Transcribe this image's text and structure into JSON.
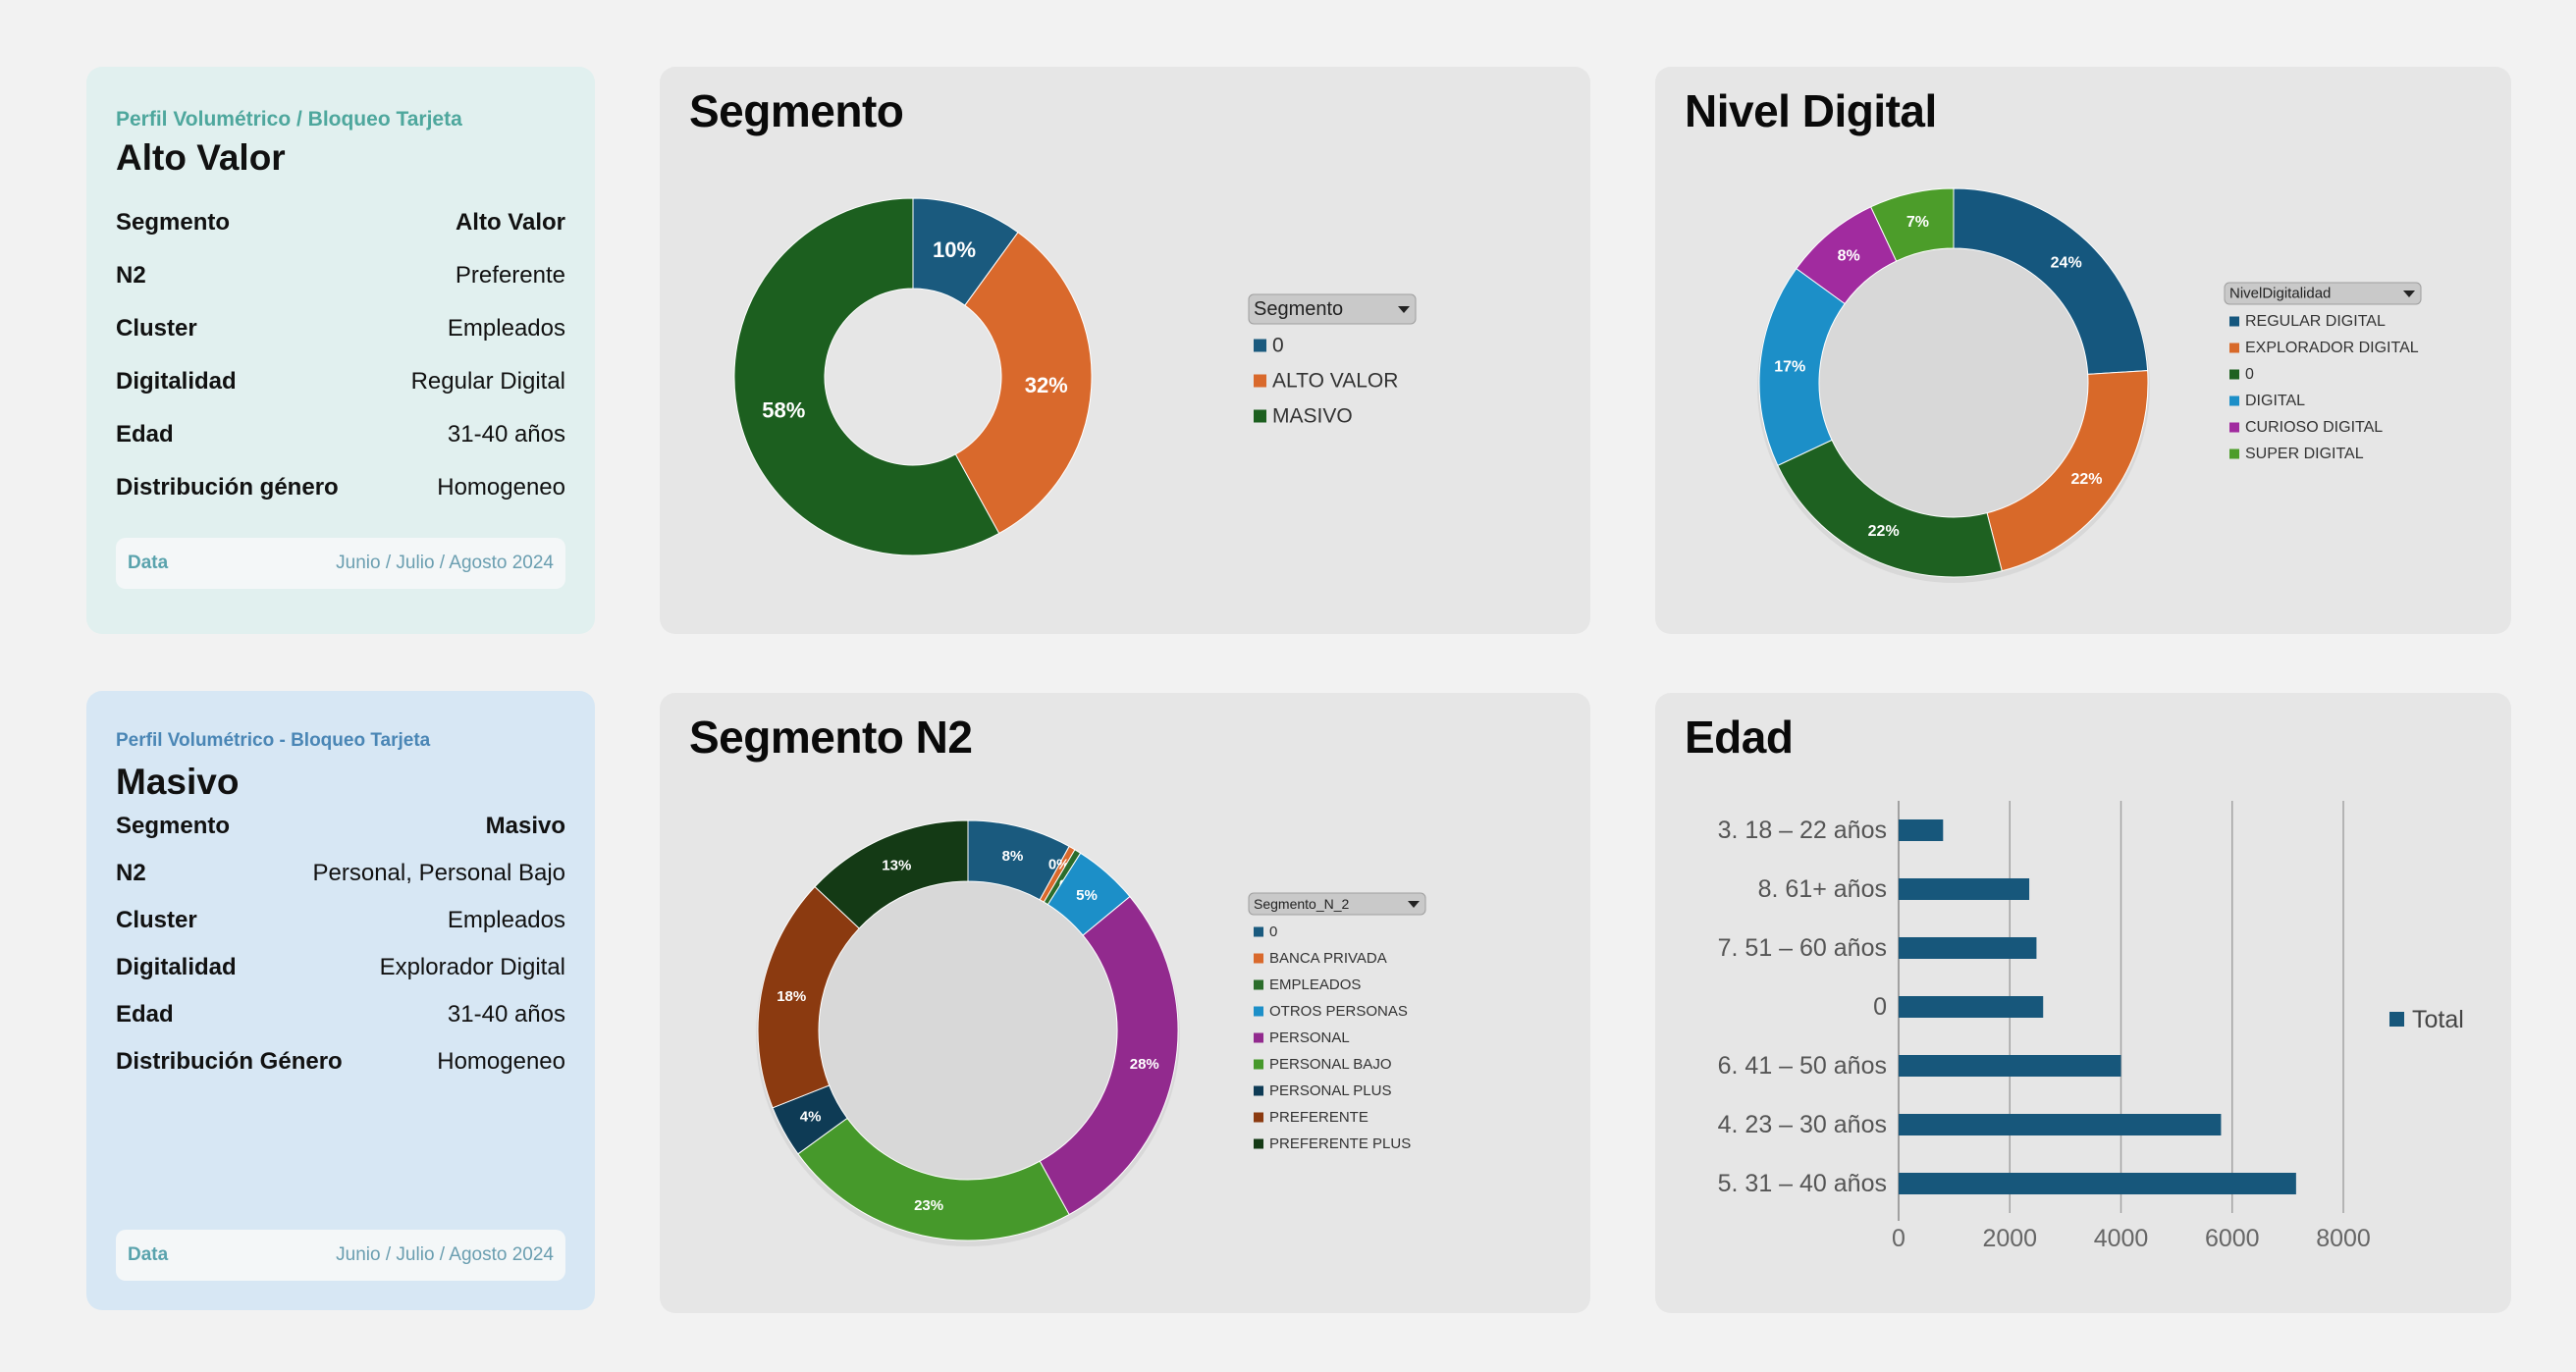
{
  "profiles": [
    {
      "kicker": "Perfil  Volumétrico / Bloqueo Tarjeta",
      "title": "Alto Valor",
      "rows": [
        {
          "key": "Segmento",
          "value": "Alto Valor"
        },
        {
          "key": "N2",
          "value": "Preferente"
        },
        {
          "key": "Cluster",
          "value": "Empleados"
        },
        {
          "key": "Digitalidad",
          "value": "Regular Digital"
        },
        {
          "key": "Edad",
          "value": "31-40 años"
        },
        {
          "key": "Distribución género",
          "value": "Homogeneo"
        }
      ],
      "footer_label": "Data",
      "footer_value": "Junio / Julio / Agosto 2024"
    },
    {
      "kicker": "Perfil  Volumétrico - Bloqueo Tarjeta",
      "title": "Masivo",
      "rows": [
        {
          "key": "Segmento",
          "value": "Masivo"
        },
        {
          "key": "N2",
          "value": "Personal, Personal Bajo"
        },
        {
          "key": "Cluster",
          "value": "Empleados"
        },
        {
          "key": "Digitalidad",
          "value": "Explorador Digital"
        },
        {
          "key": "Edad",
          "value": "31-40 años"
        },
        {
          "key": "Distribución Género",
          "value": "Homogeneo"
        }
      ],
      "footer_label": "Data",
      "footer_value": "Junio / Julio / Agosto 2024"
    }
  ],
  "chart_data": [
    {
      "id": "segmento",
      "type": "pie",
      "donut": true,
      "title": "Segmento",
      "filter_label": "Segmento",
      "categories": [
        "0",
        "ALTO VALOR",
        "MASIVO"
      ],
      "values": [
        10,
        32,
        58
      ],
      "labels": [
        "10%",
        "32%",
        "58%"
      ],
      "colors": [
        "#1a5a7e",
        "#d9692c",
        "#1c5f1f"
      ],
      "legend": "right"
    },
    {
      "id": "nivel_digital",
      "type": "pie",
      "donut": true,
      "title": "Nivel Digital",
      "filter_label": "NivelDigitalidad",
      "categories": [
        "REGULAR DIGITAL",
        "EXPLORADOR DIGITAL",
        "0",
        "DIGITAL",
        "CURIOSO DIGITAL",
        "SUPER DIGITAL"
      ],
      "values": [
        24,
        22,
        22,
        17,
        8,
        7
      ],
      "labels": [
        "24%",
        "22%",
        "22%",
        "17%",
        "8%",
        "7%"
      ],
      "colors": [
        "#15577e",
        "#d86929",
        "#1e6121",
        "#1c8fc8",
        "#a12b9f",
        "#4c9d2a"
      ],
      "legend": "right"
    },
    {
      "id": "segmento_n2",
      "type": "pie",
      "donut": true,
      "title": "Segmento N2",
      "filter_label": "Segmento_N_2",
      "categories": [
        "0",
        "BANCA PRIVADA",
        "EMPLEADOS",
        "OTROS PERSONAS",
        "PERSONAL",
        "PERSONAL BAJO",
        "PERSONAL PLUS",
        "PREFERENTE",
        "PREFERENTE PLUS"
      ],
      "values": [
        8,
        0.5,
        0.5,
        5,
        28,
        23,
        4,
        18,
        13
      ],
      "labels": [
        "8%",
        "0%",
        "0%",
        "5%",
        "28%",
        "23%",
        "4%",
        "18%",
        "13%"
      ],
      "colors": [
        "#1a5a7e",
        "#d9692c",
        "#2b6d2b",
        "#1c8fc8",
        "#922a8e",
        "#46992b",
        "#0e3b55",
        "#8b3a10",
        "#143a15"
      ],
      "legend": "right"
    },
    {
      "id": "edad",
      "type": "bar",
      "orientation": "horizontal",
      "title": "Edad",
      "categories": [
        "3. 18 – 22 años",
        "8. 61+ años",
        "7. 51 – 60 años",
        "0",
        "6. 41 – 50 años",
        "4. 23 – 30 años",
        "5. 31 – 40 años"
      ],
      "series": [
        {
          "name": "Total",
          "values": [
            800,
            2350,
            2480,
            2600,
            4000,
            5800,
            7150
          ]
        }
      ],
      "xlim": [
        0,
        8000
      ],
      "xticks": [
        0,
        2000,
        4000,
        6000,
        8000
      ],
      "color": "#17577b",
      "grid": true,
      "legend": "right"
    }
  ]
}
